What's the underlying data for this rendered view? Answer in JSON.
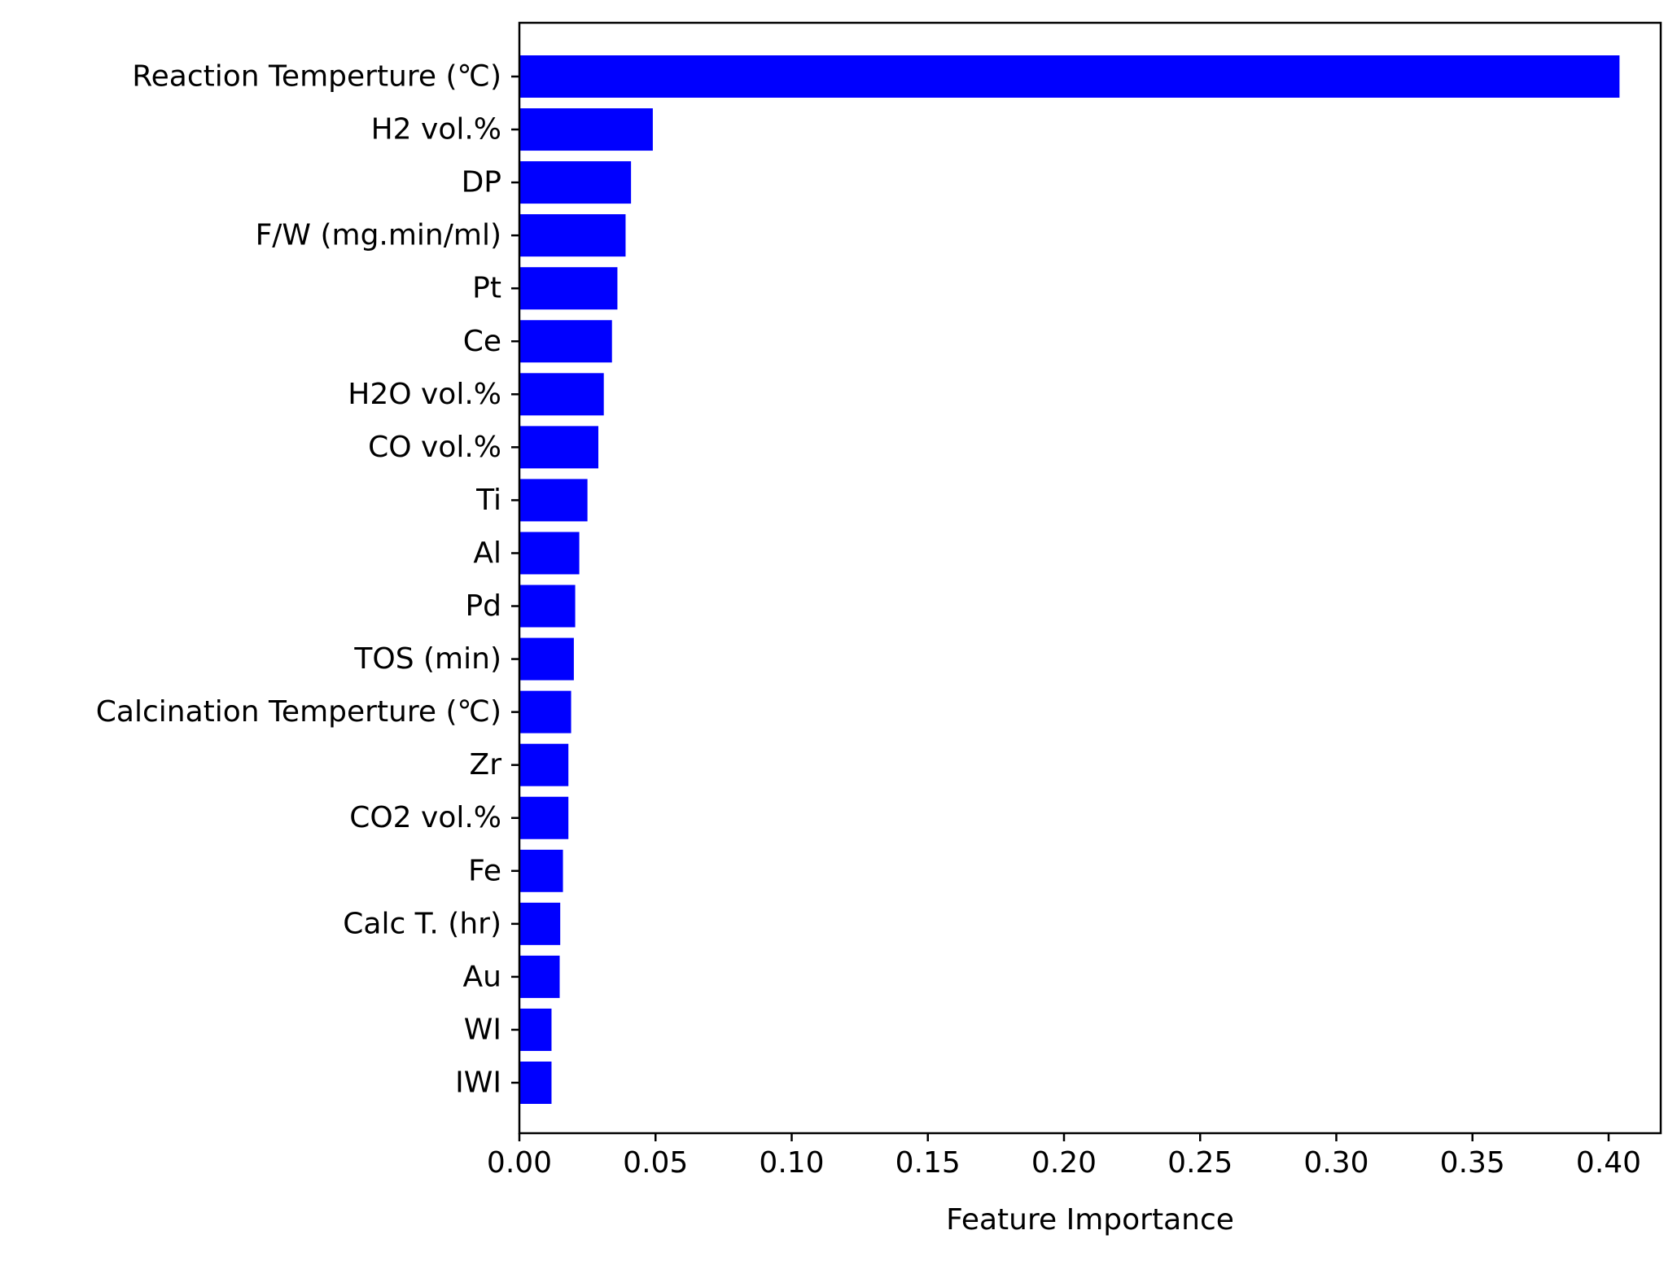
{
  "chart_data": {
    "type": "bar",
    "orientation": "horizontal",
    "title": "",
    "xlabel": "Feature Importance",
    "ylabel": "",
    "xlim": [
      0,
      0.425
    ],
    "xticks": [
      "0.00",
      "0.05",
      "0.10",
      "0.15",
      "0.20",
      "0.25",
      "0.30",
      "0.35",
      "0.40"
    ],
    "grid": false,
    "legend": "none",
    "bar_color": "#0000ff",
    "categories": [
      "Reaction Temperture (℃)",
      "H2 vol.%",
      "DP",
      "F/W (mg.min/ml)",
      "Pt",
      "Ce",
      "H2O vol.%",
      "CO vol.%",
      "Ti",
      "Al",
      "Pd",
      "TOS (min)",
      "Calcination Temperture (℃)",
      "Zr",
      "CO2 vol.%",
      "Fe",
      "Calc T. (hr)",
      "Au",
      "WI",
      "IWI"
    ],
    "values": [
      0.404,
      0.049,
      0.041,
      0.039,
      0.036,
      0.034,
      0.031,
      0.029,
      0.025,
      0.022,
      0.0205,
      0.02,
      0.019,
      0.018,
      0.018,
      0.016,
      0.015,
      0.0148,
      0.0118,
      0.0118
    ]
  }
}
